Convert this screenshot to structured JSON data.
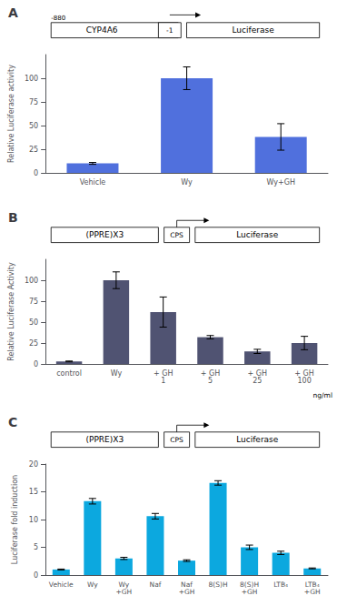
{
  "chart_data": [
    {
      "type": "bar",
      "title": "A",
      "categories": [
        "Vehicle",
        "Wy",
        "Wy+GH"
      ],
      "values": [
        10,
        100,
        38
      ],
      "errors": [
        1,
        12,
        14
      ],
      "ylabel": "Relative Luciferase activity",
      "ylim": [
        0,
        125
      ],
      "yticks": [
        0,
        25,
        50,
        75,
        100
      ],
      "grid": false,
      "annotations": [
        "-880",
        "CYP4A6",
        "-1",
        "Luciferase"
      ]
    },
    {
      "type": "bar",
      "title": "B",
      "categories": [
        "control",
        "Wy",
        "+ GH\n1",
        "+ GH\n5",
        "+ GH\n25",
        "+ GH\n100"
      ],
      "values": [
        3,
        100,
        62,
        32,
        15,
        25
      ],
      "errors": [
        0.5,
        10,
        18,
        2,
        2.5,
        8
      ],
      "ylabel": "Relative Luciferase Activity",
      "ylim": [
        0,
        125
      ],
      "yticks": [
        0,
        25,
        50,
        75,
        100
      ],
      "grid": false,
      "annotations": [
        "(PPRE)X3",
        "CPS",
        "Luciferase",
        "ng/ml"
      ]
    },
    {
      "type": "bar",
      "title": "C",
      "categories": [
        "Vehicle",
        "Wy",
        "Wy\n+GH",
        "Naf",
        "Naf\n+GH",
        "8(S)H",
        "8(S)H\n+GH",
        "LTB₄",
        "LTB₄\n+GH"
      ],
      "values": [
        1,
        13.3,
        3.0,
        10.6,
        2.6,
        16.6,
        5.0,
        4.0,
        1.2
      ],
      "errors": [
        0.08,
        0.5,
        0.2,
        0.5,
        0.15,
        0.4,
        0.4,
        0.3,
        0.08
      ],
      "ylabel": "Luciferase fold induction",
      "ylim": [
        0,
        20
      ],
      "yticks": [
        0,
        5,
        10,
        15,
        20
      ],
      "grid": false,
      "annotations": [
        "(PPRE)X3",
        "CPS",
        "Luciferase"
      ]
    }
  ]
}
